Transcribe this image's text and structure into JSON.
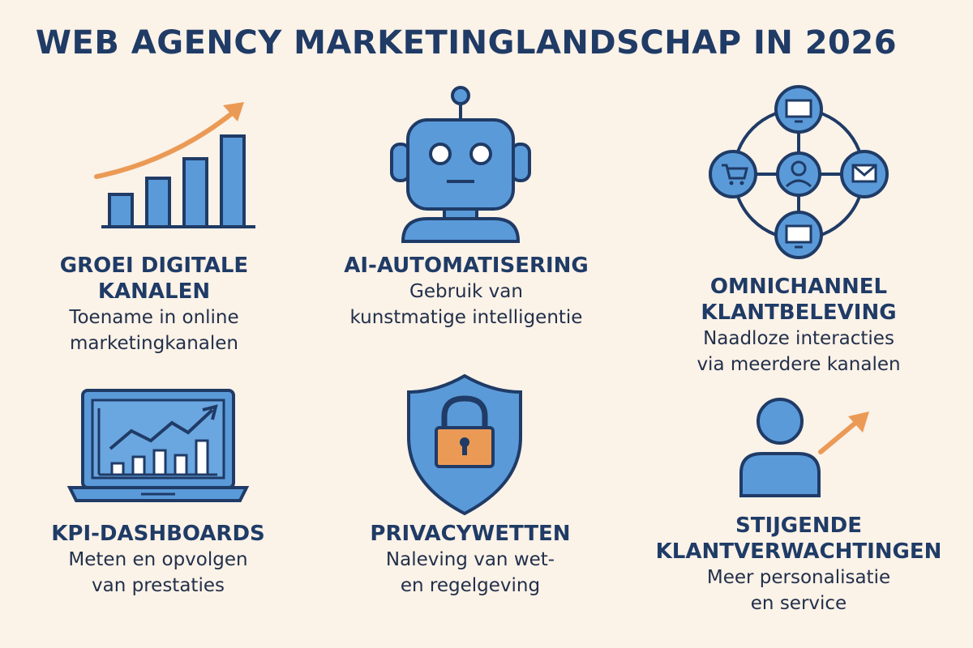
{
  "title": "WEB AGENCY MARKETINGLANDSCHAP IN 2026",
  "colors": {
    "blue": "#5a9ad9",
    "outline": "#1f3b66",
    "orange": "#eb9a55",
    "background": "#fbf2e8"
  },
  "items": [
    {
      "heading": [
        "GROEI DIGITALE",
        "KANALEN"
      ],
      "desc": [
        "Toename in online",
        "marketingkanalen"
      ],
      "icon": "growth-chart-icon"
    },
    {
      "heading": [
        "AI-AUTOMATISERING"
      ],
      "desc": [
        "Gebruik van",
        "kunstmatige intelligentie"
      ],
      "icon": "robot-icon"
    },
    {
      "heading": [
        "OMNICHANNEL",
        "KLANTBELEVING"
      ],
      "desc": [
        "Naadloze interacties",
        "via meerdere kanalen"
      ],
      "icon": "omnichannel-network-icon"
    },
    {
      "heading": [
        "KPI-DASHBOARDS"
      ],
      "desc": [
        "Meten en opvolgen",
        "van prestaties"
      ],
      "icon": "laptop-dashboard-icon"
    },
    {
      "heading": [
        "PRIVACYWETTEN"
      ],
      "desc": [
        "Naleving van wet-",
        "en regelgeving"
      ],
      "icon": "shield-lock-icon"
    },
    {
      "heading": [
        "STIJGENDE",
        "KLANTVERWACHTINGEN"
      ],
      "desc": [
        "Meer personalisatie",
        "en service"
      ],
      "icon": "user-rising-icon"
    }
  ]
}
